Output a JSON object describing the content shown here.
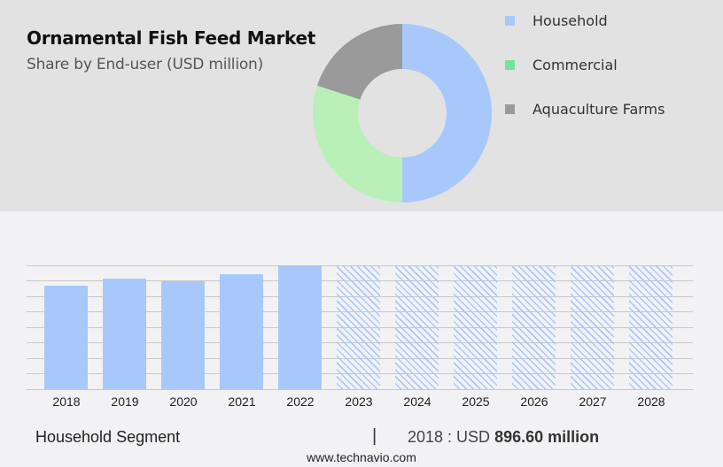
{
  "header": {
    "title": "Ornamental Fish Feed Market",
    "subtitle": "Share by End-user (USD million)"
  },
  "legend": [
    {
      "label": "Household",
      "color": "#a8c8fc"
    },
    {
      "label": "Commercial",
      "color": "#74e49a"
    },
    {
      "label": "Aquaculture Farms",
      "color": "#9a9a9a"
    }
  ],
  "footer": {
    "segment": "Household Segment",
    "separator": "|",
    "value_prefix": "2018 : USD",
    "value_bold": "896.60 million",
    "url": "www.technavio.com"
  },
  "chart_data": [
    {
      "type": "pie",
      "subtype": "donut",
      "title": "Ornamental Fish Feed Market",
      "subtitle": "Share by End-user (USD million)",
      "categories": [
        "Household",
        "Commercial",
        "Aquaculture Farms"
      ],
      "values": [
        50,
        30,
        20
      ],
      "unit": "approx. % share",
      "colors": [
        "#a8c8fc",
        "#b8f0b8",
        "#9a9a9a"
      ],
      "legend_position": "right"
    },
    {
      "type": "bar",
      "title": "Household Segment",
      "categories": [
        "2018",
        "2019",
        "2020",
        "2021",
        "2022",
        "2023",
        "2024",
        "2025",
        "2026",
        "2027",
        "2028"
      ],
      "values": [
        896.6,
        958,
        935,
        996,
        1073,
        null,
        null,
        null,
        null,
        null,
        null
      ],
      "forecast_categories": [
        "2023",
        "2024",
        "2025",
        "2026",
        "2027",
        "2028"
      ],
      "xlabel": "",
      "ylabel": "USD million",
      "grid": true,
      "annotation": "2018 : USD 896.60 million",
      "color": "#a8c8fc"
    }
  ]
}
